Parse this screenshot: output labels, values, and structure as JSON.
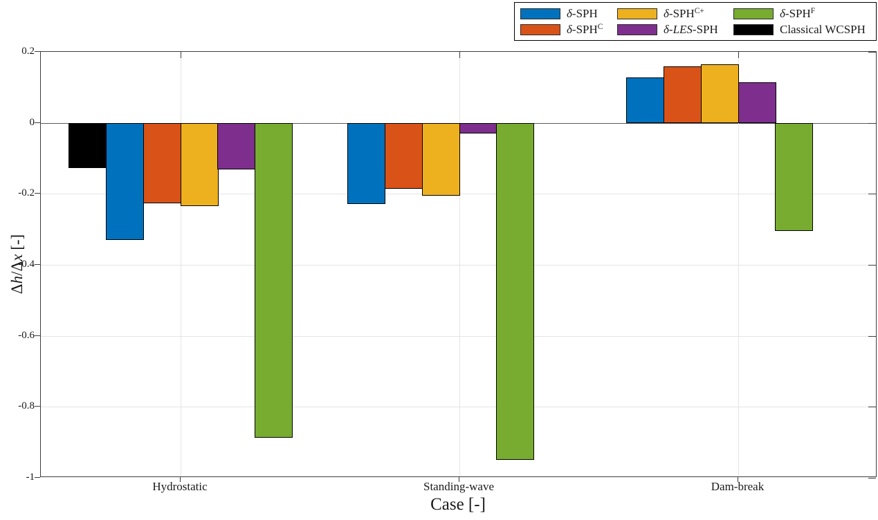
{
  "figure": {
    "background": "#ffffff",
    "axis_color": "#3c3c3c",
    "grid_color": "#e4e4e4",
    "zero_line_color": "#5a5a5a",
    "ylabel_parts": [
      {
        "t": "Δ"
      },
      {
        "t": "h",
        "i": true
      },
      {
        "t": "/Δ"
      },
      {
        "t": "x",
        "i": true
      },
      {
        "t": " [-]"
      }
    ]
  },
  "chart_data": {
    "type": "bar",
    "title": "",
    "xlabel": "Case [-]",
    "ylabel": "Δh/Δx [-]",
    "categories": [
      "Hydrostatic",
      "Standing-wave",
      "Dam-break"
    ],
    "ylim": [
      -1,
      0.2
    ],
    "yticks": [
      0.2,
      0,
      -0.2,
      -0.4,
      -0.6,
      -0.8,
      -1
    ],
    "ytick_labels": [
      "0.2",
      "0",
      "-0.2",
      "-0.4",
      "-0.6",
      "-0.8",
      "-1"
    ],
    "grid": true,
    "legend_position": "top-right-outside",
    "bar_group_width_fraction": 0.8,
    "slots_per_group": 6,
    "series": [
      {
        "id": "d-sph",
        "name": "δ-SPH",
        "color": "#0072BD",
        "values": [
          -0.33,
          -0.227,
          0.128
        ]
      },
      {
        "id": "d-sph-c",
        "name": "δ-SPH^C",
        "color": "#D95319",
        "values": [
          -0.226,
          -0.186,
          0.16
        ]
      },
      {
        "id": "d-sph-cplus",
        "name": "δ-SPH^C+",
        "color": "#EDB120",
        "values": [
          -0.233,
          -0.205,
          0.165
        ]
      },
      {
        "id": "d-les-sph",
        "name": "δ-LES-SPH",
        "color": "#7E2F8E",
        "values": [
          -0.13,
          -0.029,
          0.114
        ]
      },
      {
        "id": "d-sph-f",
        "name": "δ-SPH^F",
        "color": "#77AC30",
        "values": [
          -0.886,
          -0.949,
          -0.304
        ]
      },
      {
        "id": "classical-wcsph",
        "name": "Classical WCSPH",
        "color": "#000000",
        "values": [
          -0.126,
          null,
          null
        ]
      }
    ],
    "bar_order_per_category": [
      [
        "classical-wcsph",
        "d-sph",
        "d-sph-c",
        "d-sph-cplus",
        "d-les-sph",
        "d-sph-f"
      ],
      [
        "d-sph",
        "d-sph-c",
        "d-sph-cplus",
        "d-les-sph",
        "d-sph-f"
      ],
      [
        "d-sph",
        "d-sph-c",
        "d-sph-cplus",
        "d-les-sph",
        "d-sph-f"
      ]
    ]
  },
  "legend": {
    "items": [
      {
        "id": "d-sph",
        "label_parts": [
          {
            "t": "δ",
            "i": true
          },
          {
            "t": "-SPH"
          }
        ]
      },
      {
        "id": "d-sph-cplus",
        "label_parts": [
          {
            "t": "δ",
            "i": true
          },
          {
            "t": "-SPH"
          },
          {
            "t": "C+",
            "sup": true
          }
        ]
      },
      {
        "id": "d-sph-f",
        "label_parts": [
          {
            "t": "δ",
            "i": true
          },
          {
            "t": "-SPH"
          },
          {
            "t": "F",
            "sup": true
          }
        ]
      },
      {
        "id": "d-sph-c",
        "label_parts": [
          {
            "t": "δ",
            "i": true
          },
          {
            "t": "-SPH"
          },
          {
            "t": "C",
            "sup": true
          }
        ]
      },
      {
        "id": "d-les-sph",
        "label_parts": [
          {
            "t": "δ",
            "i": true
          },
          {
            "t": "-"
          },
          {
            "t": "LES",
            "i": true
          },
          {
            "t": "-SPH"
          }
        ]
      },
      {
        "id": "classical-wcsph",
        "label_parts": [
          {
            "t": "Classical WCSPH"
          }
        ]
      }
    ]
  }
}
